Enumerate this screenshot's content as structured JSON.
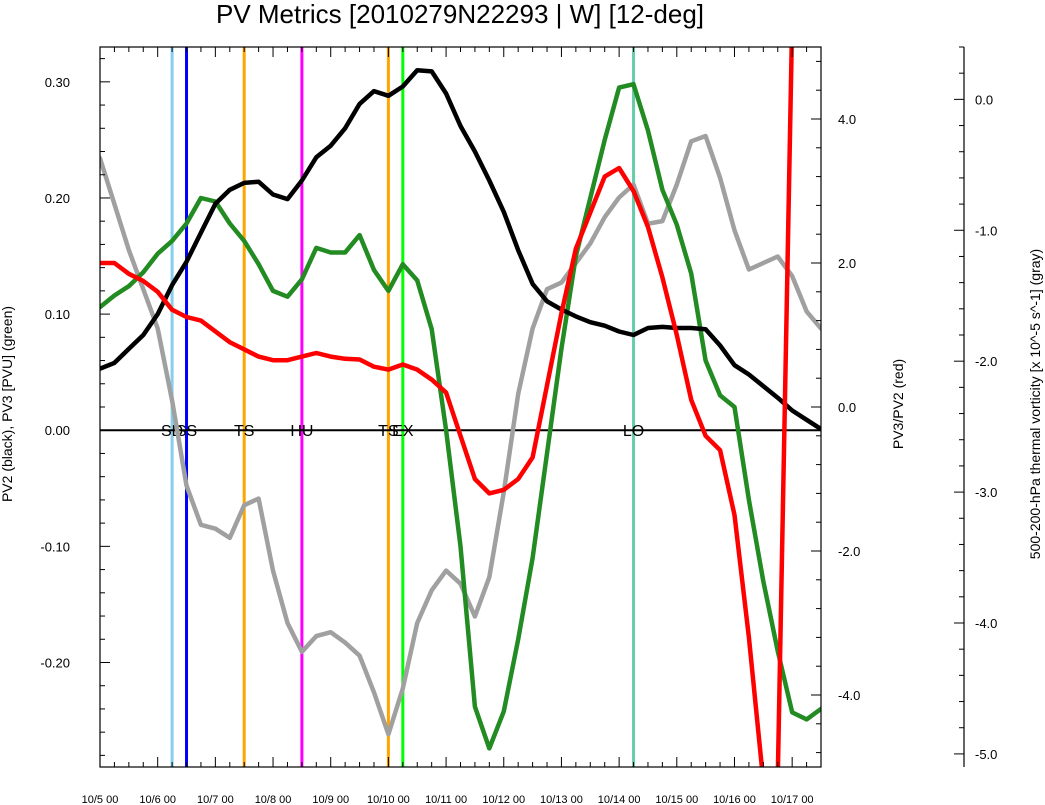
{
  "chart_data": {
    "type": "line",
    "title": "PV Metrics [2010279N22293 | W] [12-deg]",
    "x_ticks": [
      "10/5 00",
      "10/6 00",
      "10/7 00",
      "10/8 00",
      "10/9 00",
      "10/10 00",
      "10/11 00",
      "10/12 00",
      "10/13 00",
      "10/14 00",
      "10/15 00",
      "10/16 00",
      "10/17 00"
    ],
    "xlim": [
      0,
      12.5
    ],
    "left_axis": {
      "label": "PV2 (black), PV3 [PVU] (green)",
      "ylim": [
        -0.29,
        0.33
      ],
      "ticks": [
        0.3,
        0.2,
        0.1,
        0.0,
        -0.1,
        -0.2
      ],
      "tick_labels": [
        "0.30",
        "0.20",
        "0.10",
        "0.00",
        "-0.10",
        "-0.20"
      ]
    },
    "right_axis": {
      "label": "PV3/PV2 (red)",
      "ylim": [
        -5.0,
        5.0
      ],
      "ticks": [
        4,
        2,
        0,
        -2,
        -4
      ],
      "tick_labels": [
        "4.0",
        "2.0",
        "0.0",
        "-2.0",
        "-4.0"
      ]
    },
    "far_right_axis": {
      "label": "500-200-hPa thermal vorticity [x 10^-5 s^-1] (gray)",
      "ylim": [
        -5.1,
        0.4
      ],
      "ticks": [
        0,
        -1,
        -2,
        -3,
        -4,
        -5
      ],
      "tick_labels": [
        "0.0",
        "-1.0",
        "-2.0",
        "-3.0",
        "-4.0",
        "-5.0"
      ]
    },
    "zero_line": 0.0,
    "events": [
      {
        "x": 1.25,
        "label": "SD",
        "color": "#87ceeb"
      },
      {
        "x": 1.5,
        "label": "SS",
        "color": "#0000ff"
      },
      {
        "x": 2.5,
        "label": "TS",
        "color": "#ffa500"
      },
      {
        "x": 3.5,
        "label": "HU",
        "color": "#ff00ff"
      },
      {
        "x": 5.0,
        "label": "TS",
        "color": "#ffa500"
      },
      {
        "x": 5.25,
        "label": "EX",
        "color": "#00ff00"
      },
      {
        "x": 9.25,
        "label": "LO",
        "color": "#66cdaa"
      }
    ],
    "series": [
      {
        "axis": "left",
        "color": "#000000",
        "x": [
          0,
          0.25,
          0.5,
          0.75,
          1,
          1.25,
          1.5,
          1.75,
          2,
          2.25,
          2.5,
          2.75,
          3,
          3.25,
          3.5,
          3.75,
          4,
          4.25,
          4.5,
          4.75,
          5,
          5.25,
          5.5,
          5.75,
          6,
          6.25,
          6.5,
          6.75,
          7,
          7.25,
          7.5,
          7.75,
          8,
          8.25,
          8.5,
          8.75,
          9,
          9.25,
          9.5,
          9.75,
          10,
          10.25,
          10.5,
          10.75,
          11,
          11.25,
          11.5,
          11.75,
          12,
          12.25,
          12.5
        ],
        "y": [
          0.053,
          0.058,
          0.07,
          0.082,
          0.1,
          0.125,
          0.145,
          0.17,
          0.195,
          0.207,
          0.213,
          0.214,
          0.203,
          0.199,
          0.215,
          0.235,
          0.245,
          0.26,
          0.281,
          0.292,
          0.288,
          0.296,
          0.31,
          0.309,
          0.29,
          0.262,
          0.24,
          0.215,
          0.188,
          0.155,
          0.126,
          0.111,
          0.104,
          0.098,
          0.093,
          0.09,
          0.085,
          0.082,
          0.088,
          0.089,
          0.088,
          0.088,
          0.087,
          0.073,
          0.056,
          0.048,
          0.038,
          0.028,
          0.017,
          0.009,
          0.001
        ]
      },
      {
        "axis": "left",
        "color": "#228b22",
        "x": [
          0,
          0.25,
          0.5,
          0.75,
          1,
          1.25,
          1.5,
          1.75,
          2,
          2.25,
          2.5,
          2.75,
          3,
          3.25,
          3.5,
          3.75,
          4,
          4.25,
          4.5,
          4.75,
          5,
          5.25,
          5.5,
          5.75,
          6,
          6.25,
          6.5,
          6.75,
          7,
          7.25,
          7.5,
          7.75,
          8,
          8.25,
          8.5,
          8.75,
          9,
          9.25,
          9.5,
          9.75,
          10,
          10.25,
          10.5,
          10.75,
          11,
          11.25,
          11.5,
          11.75,
          12,
          12.25,
          12.5
        ],
        "y": [
          0.106,
          0.116,
          0.124,
          0.136,
          0.152,
          0.163,
          0.178,
          0.2,
          0.197,
          0.178,
          0.163,
          0.143,
          0.12,
          0.115,
          0.13,
          0.157,
          0.153,
          0.153,
          0.168,
          0.138,
          0.12,
          0.143,
          0.129,
          0.087,
          0.0,
          -0.1,
          -0.238,
          -0.274,
          -0.242,
          -0.18,
          -0.11,
          -0.02,
          0.07,
          0.15,
          0.2,
          0.25,
          0.295,
          0.298,
          0.258,
          0.207,
          0.177,
          0.135,
          0.06,
          0.03,
          0.02,
          -0.06,
          -0.13,
          -0.19,
          -0.243,
          -0.249,
          -0.24
        ]
      },
      {
        "axis": "right",
        "color": "#ff0000",
        "x": [
          0,
          0.25,
          0.5,
          0.75,
          1,
          1.25,
          1.5,
          1.75,
          2,
          2.25,
          2.5,
          2.75,
          3,
          3.25,
          3.5,
          3.75,
          4,
          4.25,
          4.5,
          4.75,
          5,
          5.25,
          5.5,
          5.75,
          6,
          6.25,
          6.5,
          6.75,
          7,
          7.25,
          7.5,
          7.75,
          8,
          8.25,
          8.5,
          8.75,
          9,
          9.25,
          9.5,
          9.75,
          10,
          10.25,
          10.5,
          10.75,
          11,
          11.25,
          11.5,
          11.75,
          12,
          12.25,
          12.5
        ],
        "y": [
          2.0,
          2.0,
          1.85,
          1.75,
          1.6,
          1.35,
          1.25,
          1.2,
          1.05,
          0.9,
          0.8,
          0.7,
          0.65,
          0.65,
          0.7,
          0.75,
          0.7,
          0.67,
          0.66,
          0.56,
          0.52,
          0.59,
          0.52,
          0.38,
          0.2,
          -0.4,
          -1.0,
          -1.2,
          -1.15,
          -1.0,
          -0.7,
          0.3,
          1.3,
          2.2,
          2.7,
          3.2,
          3.32,
          3.0,
          2.5,
          1.8,
          1.0,
          0.1,
          -0.4,
          -0.6,
          -1.5,
          -3.2,
          -5.2,
          -5.2,
          5.4,
          5.4,
          5.4
        ]
      },
      {
        "axis": "far_right",
        "color": "#a0a0a0",
        "x": [
          0,
          0.25,
          0.5,
          0.75,
          1,
          1.25,
          1.5,
          1.75,
          2,
          2.25,
          2.5,
          2.75,
          3,
          3.25,
          3.5,
          3.75,
          4,
          4.25,
          4.5,
          4.75,
          5,
          5.25,
          5.5,
          5.75,
          6,
          6.25,
          6.5,
          6.75,
          7,
          7.25,
          7.5,
          7.75,
          8,
          8.25,
          8.5,
          8.75,
          9,
          9.25,
          9.5,
          9.75,
          10,
          10.25,
          10.5,
          10.75,
          11,
          11.25,
          11.5,
          11.75,
          12,
          12.25,
          12.5
        ],
        "y": [
          -0.45,
          -0.8,
          -1.15,
          -1.45,
          -1.75,
          -2.3,
          -2.95,
          -3.25,
          -3.28,
          -3.35,
          -3.1,
          -3.05,
          -3.6,
          -4.0,
          -4.22,
          -4.1,
          -4.07,
          -4.15,
          -4.25,
          -4.53,
          -4.85,
          -4.5,
          -4.0,
          -3.75,
          -3.6,
          -3.7,
          -3.95,
          -3.65,
          -3.0,
          -2.25,
          -1.75,
          -1.45,
          -1.4,
          -1.25,
          -1.1,
          -0.9,
          -0.75,
          -0.65,
          -0.95,
          -0.93,
          -0.65,
          -0.32,
          -0.28,
          -0.6,
          -1.0,
          -1.3,
          -1.25,
          -1.2,
          -1.35,
          -1.62,
          -1.75
        ]
      }
    ]
  }
}
